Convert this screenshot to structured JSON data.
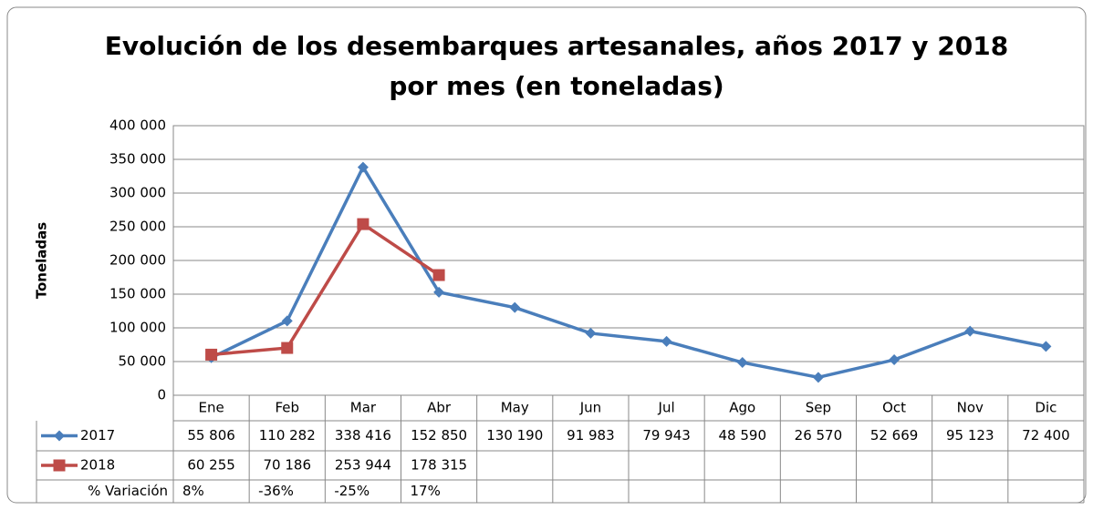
{
  "chart_data": {
    "type": "line",
    "title": [
      "Evolución de los desembarques artesanales, años 2017 y 2018",
      "por mes (en toneladas)"
    ],
    "y_label": "Toneladas",
    "categories": [
      "Ene",
      "Feb",
      "Mar",
      "Abr",
      "May",
      "Jun",
      "Jul",
      "Ago",
      "Sep",
      "Oct",
      "Nov",
      "Dic"
    ],
    "series": [
      {
        "name": "2017",
        "color": "#4a7ebb",
        "marker": "diamond",
        "values": [
          55806,
          110282,
          338416,
          152850,
          130190,
          91983,
          79943,
          48590,
          26570,
          52669,
          95123,
          72400
        ],
        "value_labels": [
          "55 806",
          "110 282",
          "338 416",
          "152 850",
          "130 190",
          "91 983",
          "79 943",
          "48 590",
          "26 570",
          "52 669",
          "95 123",
          "72 400"
        ]
      },
      {
        "name": "2018",
        "color": "#be4b48",
        "marker": "square",
        "values": [
          60255,
          70186,
          253944,
          178315,
          null,
          null,
          null,
          null,
          null,
          null,
          null,
          null
        ],
        "value_labels": [
          "60 255",
          "70 186",
          "253 944",
          "178 315",
          null,
          null,
          null,
          null,
          null,
          null,
          null,
          null
        ]
      }
    ],
    "variation": {
      "name": "% Variación",
      "values": [
        8,
        -36,
        -25,
        17,
        null,
        null,
        null,
        null,
        null,
        null,
        null,
        null
      ],
      "value_labels": [
        "8%",
        "-36%",
        "-25%",
        "17%",
        null,
        null,
        null,
        null,
        null,
        null,
        null,
        null
      ]
    },
    "ylim": [
      0,
      400000
    ],
    "yticks": [
      0,
      {
        "value": 50000,
        "label": "50 000"
      },
      {
        "value": 100000,
        "label": "100 000"
      },
      {
        "value": 150000,
        "label": "150 000"
      },
      {
        "value": 200000,
        "label": "200 000"
      },
      {
        "value": 250000,
        "label": "250 000"
      },
      {
        "value": 300000,
        "label": "300 000"
      },
      {
        "value": 350000,
        "label": "350 000"
      },
      {
        "value": 400000,
        "label": "400 000"
      }
    ],
    "grid": true
  }
}
